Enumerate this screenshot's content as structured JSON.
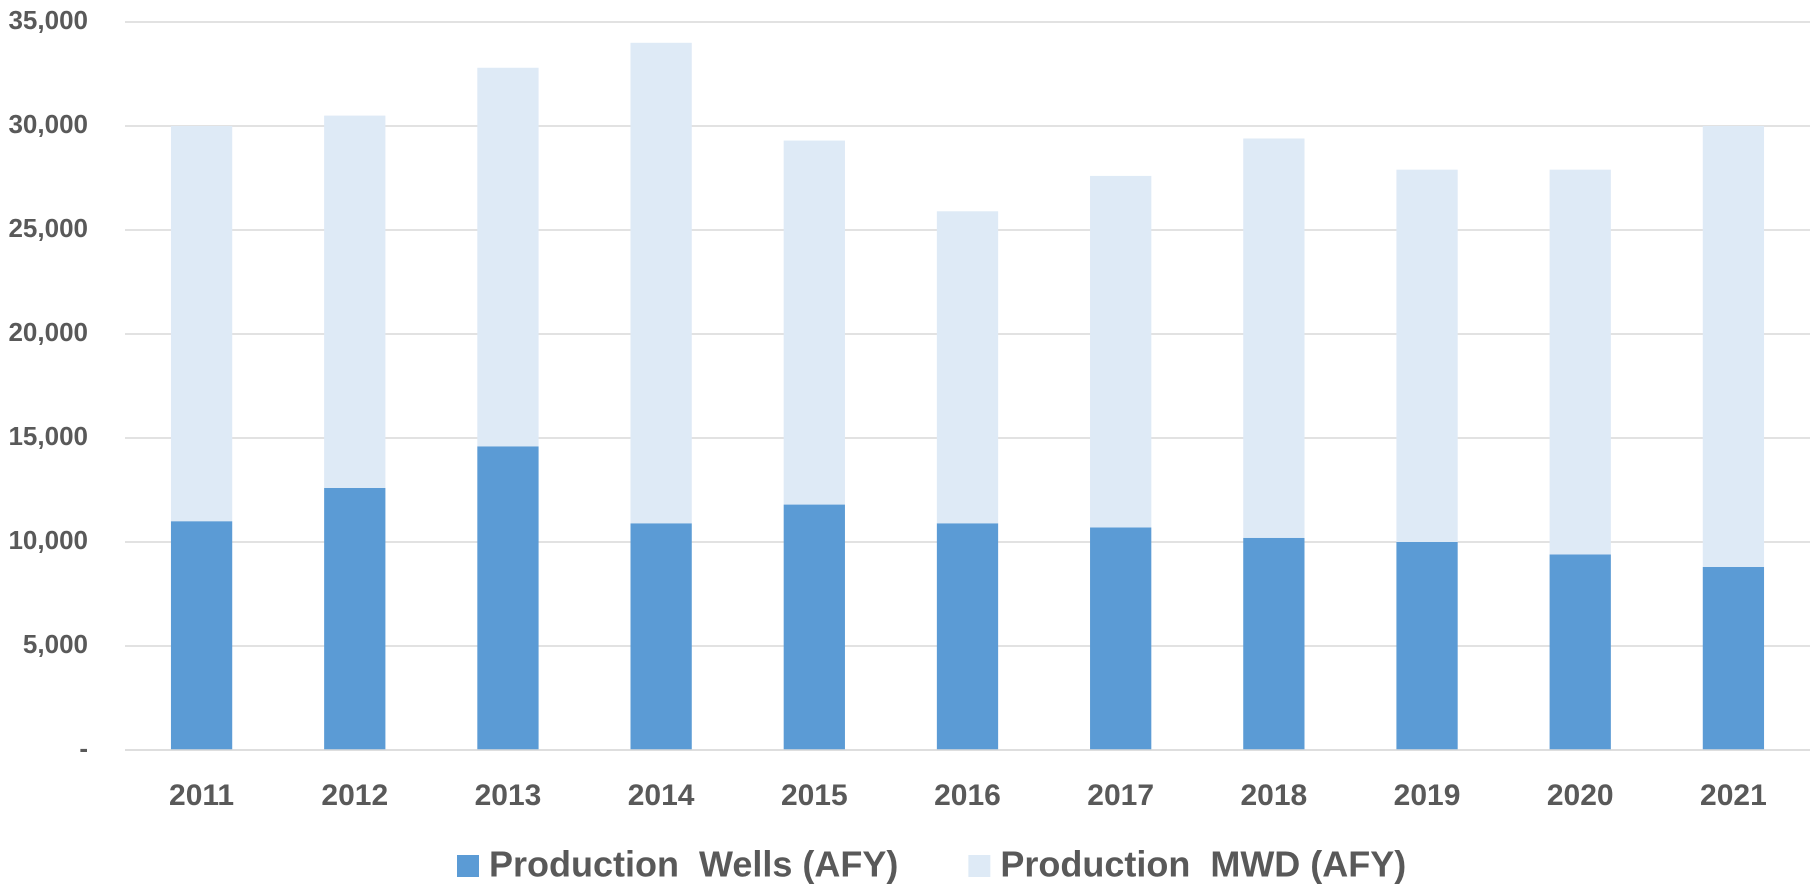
{
  "chart_data": {
    "type": "stacked_bar",
    "categories": [
      "2011",
      "2012",
      "2013",
      "2014",
      "2015",
      "2016",
      "2017",
      "2018",
      "2019",
      "2020",
      "2021"
    ],
    "series": [
      {
        "name": "Production  Wells (AFY)",
        "color": "#5b9bd5",
        "values": [
          11000,
          12600,
          14600,
          10900,
          11800,
          10900,
          10700,
          10200,
          10000,
          9400,
          8800
        ]
      },
      {
        "name": "Production  MWD (AFY)",
        "color": "#deeaf6",
        "values": [
          19000,
          17900,
          18200,
          23100,
          17500,
          15000,
          16900,
          19200,
          17900,
          18500,
          21200
        ]
      }
    ],
    "ylim": [
      0,
      35000
    ],
    "yticks": [
      {
        "value": 0,
        "label": "-"
      },
      {
        "value": 5000,
        "label": "5,000"
      },
      {
        "value": 10000,
        "label": "10,000"
      },
      {
        "value": 15000,
        "label": "15,000"
      },
      {
        "value": 20000,
        "label": "20,000"
      },
      {
        "value": 25000,
        "label": "25,000"
      },
      {
        "value": 30000,
        "label": "30,000"
      },
      {
        "value": 35000,
        "label": "35,000"
      }
    ],
    "grid": true,
    "legend": "bottom"
  }
}
